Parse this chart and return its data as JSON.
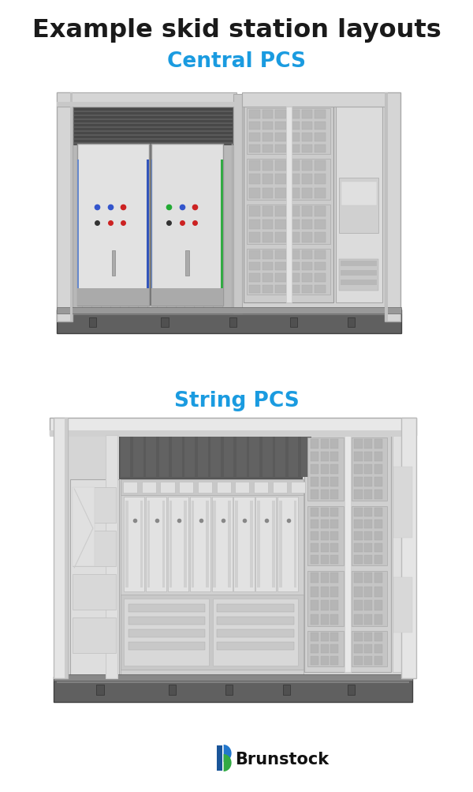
{
  "title": "Example skid station layouts",
  "title_fontsize": 23,
  "title_fontweight": "bold",
  "title_color": "#1a1a1a",
  "subtitle1": "Central PCS",
  "subtitle2": "String PCS",
  "subtitle_fontsize": 19,
  "subtitle_color": "#1a9be0",
  "logo_text": "Brunstock",
  "logo_fontsize": 15,
  "logo_color": "#111111",
  "bg_color": "#ffffff",
  "c_light": "#e8e8e8",
  "c_mid": "#cccccc",
  "c_dark": "#888888",
  "c_darker": "#666666",
  "c_darkest": "#444444",
  "c_frame": "#d5d5d5",
  "c_base": "#606060",
  "c_base_light": "#808080",
  "c_vent": "#5a5a5a",
  "c_mesh_bg": "#b8b8b8",
  "c_mesh_cell": "#d0d0d0",
  "c_white": "#f2f2f2",
  "c_panel": "#e0e0e0",
  "c_blue_line": "#3355bb",
  "c_green_line": "#33aa44",
  "accent_blue": "#3355cc",
  "accent_green": "#22aa33",
  "accent_red": "#cc2222",
  "accent_black_dot": "#333333"
}
